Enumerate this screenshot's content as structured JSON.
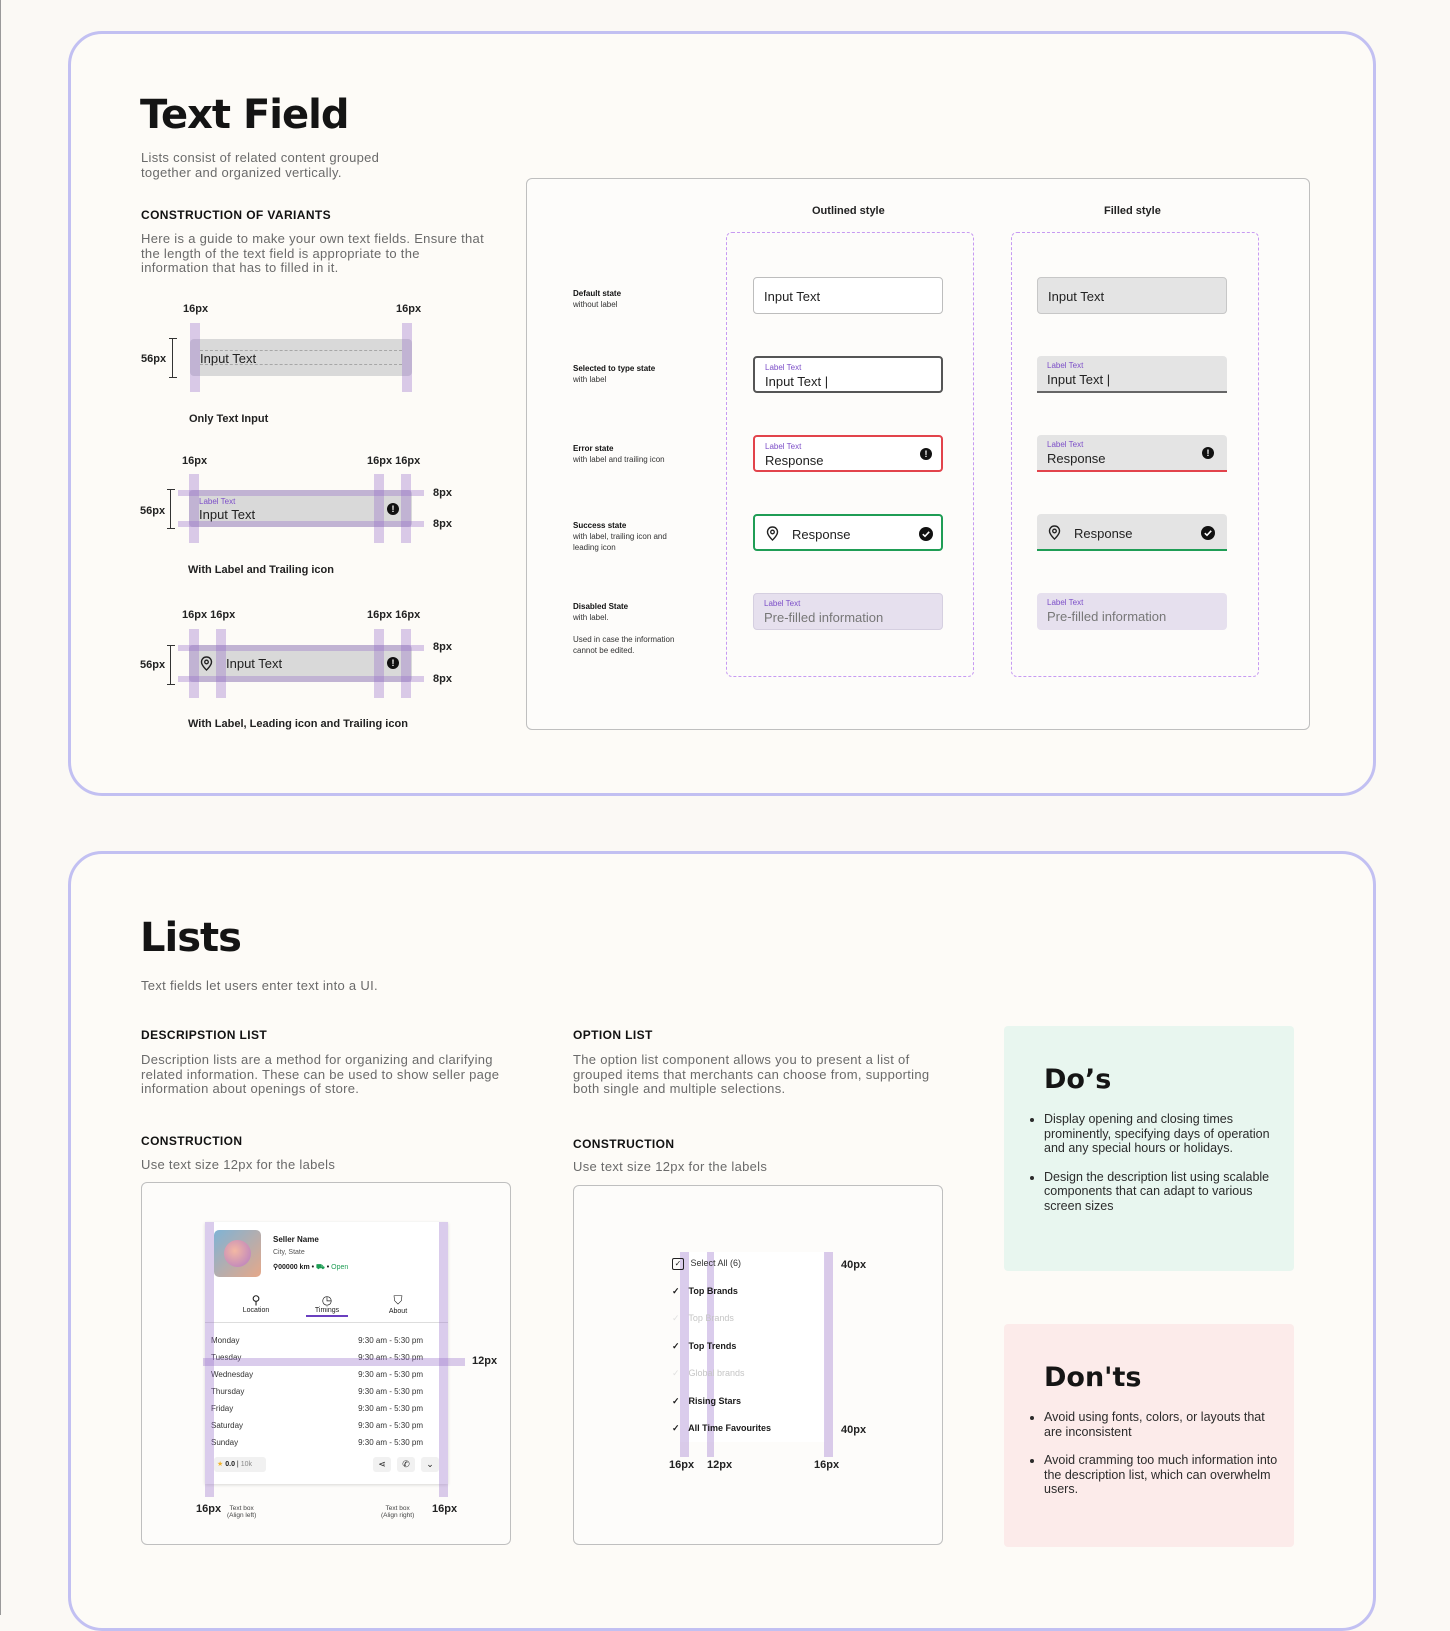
{
  "textfield": {
    "title": "Text Field",
    "subtitle_1": "Lists consist of related content grouped",
    "subtitle_2": "together and organized vertically.",
    "section": "CONSTRUCTION OF VARIANTS",
    "desc_1": "Here is a guide to make your own text fields. Ensure that",
    "desc_2": "the length of the text field is appropriate to the",
    "desc_3": "information that has to filled in it.",
    "d16": "16px",
    "d56": "56px",
    "d8": "8px",
    "d16x2": "16px 16px",
    "input_text": "Input Text",
    "label_text": "Label Text",
    "caption_1": "Only Text Input",
    "caption_2": "With Label and Trailing icon",
    "caption_3": "With Label, Leading icon and Trailing icon",
    "outlined": "Outlined style",
    "filled": "Filled style",
    "states": [
      {
        "name": "Default state",
        "desc": "without label"
      },
      {
        "name": "Selected to type state",
        "desc": "with label"
      },
      {
        "name": "Error state",
        "desc": "with label and trailing icon"
      },
      {
        "name": "Success state",
        "desc": "with label, trailing icon and",
        "desc2": "leading icon"
      },
      {
        "name": "Disabled State",
        "desc": "with label.",
        "note1": "Used in case the information",
        "note2": "cannot be edited."
      }
    ],
    "typing_text": "Input Text |",
    "response": "Response",
    "prefilled": "Pre-filled information",
    "colors": {
      "accent": "#7c4ec8",
      "error": "#e2434b",
      "success": "#1f9d55",
      "border": "#c2c0f2"
    }
  },
  "lists": {
    "title": "Lists",
    "subtitle": "Text fields let users enter text into a UI.",
    "desc_section": "DESCRIPSTION LIST",
    "desc_1": "Description lists are a method for organizing and clarifying",
    "desc_2": "related information. These can be used to show seller page",
    "desc_3": "information about openings of store.",
    "opt_section": "OPTION LIST",
    "opt_1": "The option list component allows you to present a list of",
    "opt_2": "grouped items that merchants can choose from, supporting",
    "opt_3": "both single and multiple selections.",
    "construction": "CONSTRUCTION",
    "construction_desc": "Use text size 12px for the labels",
    "seller": {
      "name": "Seller Name",
      "city": "City, State",
      "distance": "00000 km",
      "status": "Open",
      "tabs": [
        "Location",
        "Timings",
        "About"
      ],
      "days": [
        {
          "day": "Monday",
          "time": "9:30 am  -  5:30 pm"
        },
        {
          "day": "Tuesday",
          "time": "9:30 am  -  5:30 pm"
        },
        {
          "day": "Wednesday",
          "time": "9:30 am  -  5:30 pm"
        },
        {
          "day": "Thursday",
          "time": "9:30 am  -  5:30 pm"
        },
        {
          "day": "Friday",
          "time": "9:30 am  -  5:30 pm"
        },
        {
          "day": "Saturday",
          "time": "9:30 am  -  5:30 pm"
        },
        {
          "day": "Sunday",
          "time": "9:30 am  -  5:30 pm"
        }
      ],
      "rating": "0.0",
      "reviews": "10k",
      "d12": "12px",
      "d16": "16px",
      "textbox_left": "Text box",
      "align_left": "(Align left)",
      "textbox_right": "Text box",
      "align_right": "(Align right)"
    },
    "options": {
      "items": [
        {
          "label": "Select All (6)",
          "check": "box"
        },
        {
          "label": "Top Brands",
          "check": "on"
        },
        {
          "label": "Top Brands",
          "check": "off"
        },
        {
          "label": "Top Trends",
          "check": "on"
        },
        {
          "label": "Global brands",
          "check": "off"
        },
        {
          "label": "Rising Stars",
          "check": "on"
        },
        {
          "label": "All Time Favourites",
          "check": "on"
        }
      ],
      "d40": "40px",
      "d16": "16px",
      "d12": "12px"
    },
    "dos": {
      "title": "Do’s",
      "items": [
        "Display opening and closing times prominently, specifying days of operation and any special hours or holidays.",
        "Design the description list using scalable components that can adapt to various screen sizes"
      ]
    },
    "donts": {
      "title": "Don'ts",
      "items": [
        "Avoid using fonts, colors, or layouts that are inconsistent",
        "Avoid cramming too much information into the description list, which can overwhelm users."
      ]
    }
  }
}
